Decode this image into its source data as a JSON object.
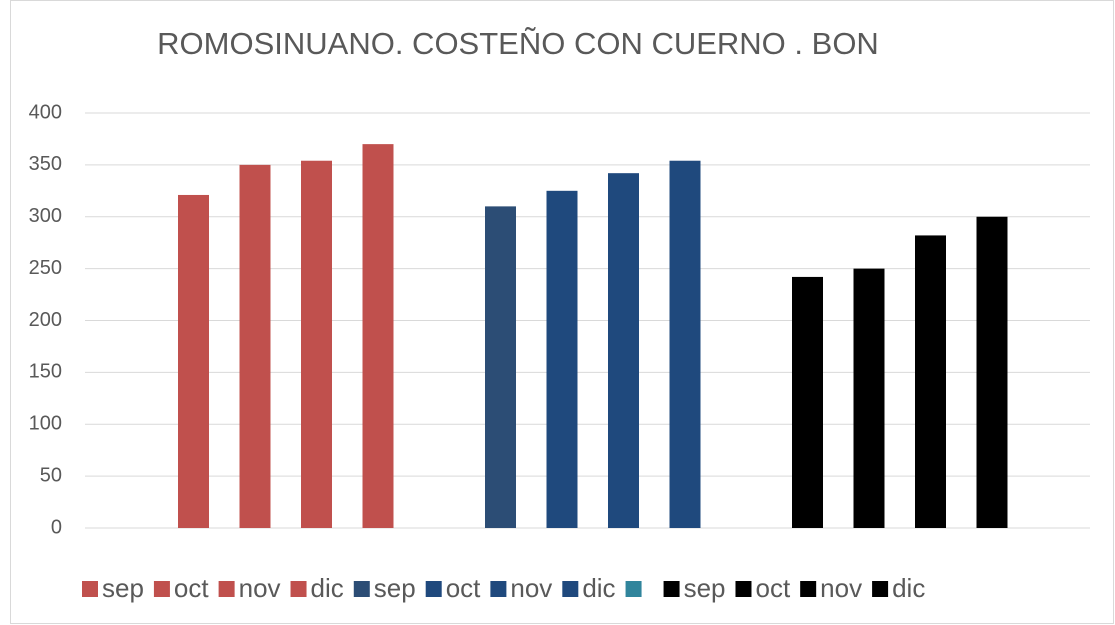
{
  "chart_data": {
    "type": "bar",
    "title": "ROMOSINUANO.  COSTEÑO CON CUERNO . BON",
    "series": [
      {
        "name": "sep",
        "color": "#c0504d",
        "values": [
          321
        ]
      },
      {
        "name": "oct",
        "color": "#c0504d",
        "values": [
          350
        ]
      },
      {
        "name": "nov",
        "color": "#c0504d",
        "values": [
          354
        ]
      },
      {
        "name": "dic",
        "color": "#c0504d",
        "values": [
          370
        ]
      },
      {
        "name": "sep",
        "color": "#2c4d75",
        "values": [
          310
        ]
      },
      {
        "name": "oct",
        "color": "#1f497d",
        "values": [
          325
        ]
      },
      {
        "name": "nov",
        "color": "#1f497d",
        "values": [
          342
        ]
      },
      {
        "name": "dic",
        "color": "#1f497d",
        "values": [
          354
        ]
      },
      {
        "name": null,
        "color": "#31859c",
        "values": [
          null
        ]
      },
      {
        "name": "sep",
        "color": "#000000",
        "values": [
          242
        ]
      },
      {
        "name": "oct",
        "color": "#000000",
        "values": [
          250
        ]
      },
      {
        "name": "nov",
        "color": "#000000",
        "values": [
          282
        ]
      },
      {
        "name": "dic",
        "color": "#000000",
        "values": [
          300
        ]
      }
    ],
    "ylim": [
      0,
      400
    ],
    "yticks": [
      0,
      50,
      100,
      150,
      200,
      250,
      300,
      350,
      400
    ],
    "grid": true
  }
}
